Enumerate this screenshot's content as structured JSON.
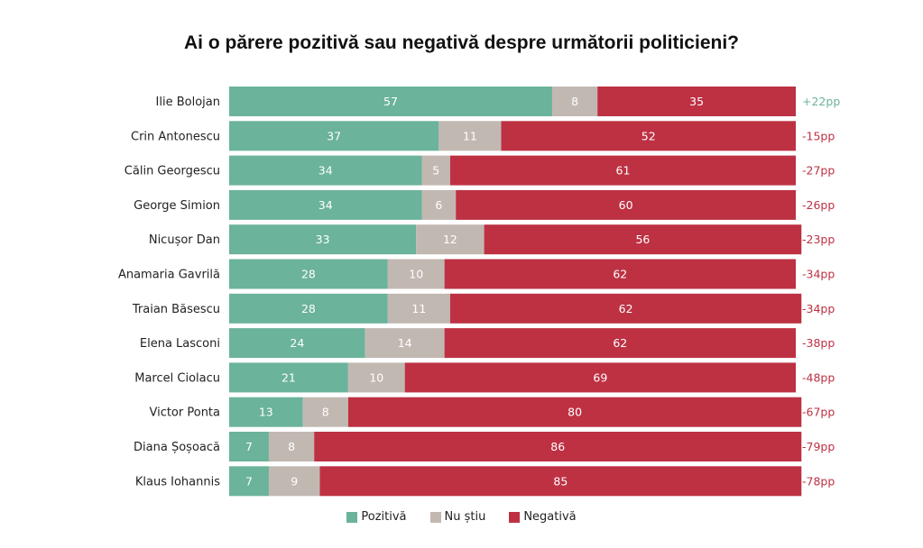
{
  "chart_data": {
    "type": "bar",
    "orientation": "horizontal-stacked-100",
    "title": "Ai o părere pozitivă sau negativă despre următorii politicieni?",
    "xlabel": "",
    "ylabel": "",
    "xlim": [
      0,
      100
    ],
    "grid": false,
    "legend_position": "bottom-center",
    "categories": [
      "Ilie Bolojan",
      "Crin Antonescu",
      "Călin Georgescu",
      "George Simion",
      "Nicușor Dan",
      "Anamaria Gavrilă",
      "Traian Băsescu",
      "Elena Lasconi",
      "Marcel Ciolacu",
      "Victor Ponta",
      "Diana Șoșoacă",
      "Klaus Iohannis"
    ],
    "series": [
      {
        "name": "Pozitivă",
        "color": "#6bb39b",
        "values": [
          57,
          37,
          34,
          34,
          33,
          28,
          28,
          24,
          21,
          13,
          7,
          7
        ]
      },
      {
        "name": "Nu știu",
        "color": "#c2b8b2",
        "values": [
          8,
          11,
          5,
          6,
          12,
          10,
          11,
          14,
          10,
          8,
          8,
          9
        ]
      },
      {
        "name": "Negativă",
        "color": "#bd3143",
        "values": [
          35,
          52,
          61,
          60,
          56,
          62,
          62,
          62,
          69,
          80,
          86,
          85
        ]
      }
    ],
    "net_labels": [
      "+22pp",
      "-15pp",
      "-27pp",
      "-26pp",
      "-23pp",
      "-34pp",
      "-34pp",
      "-38pp",
      "-48pp",
      "-67pp",
      "-79pp",
      "-78pp"
    ],
    "net_colors": {
      "positive": "#6bb39b",
      "negative": "#bd3143"
    }
  }
}
